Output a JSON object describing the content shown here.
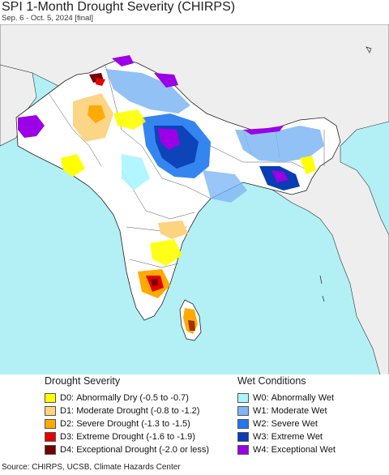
{
  "title": "SPI 1-Month Drought Severity (CHIRPS)",
  "subtitle": "Sep. 6 - Oct. 5, 2024 [final]",
  "legend": {
    "drought": {
      "heading": "Drought Severity",
      "items": [
        {
          "code": "D0:",
          "label": "Abnormally Dry (-0.5 to -0.7)",
          "color": "#ffff00"
        },
        {
          "code": "D1:",
          "label": "Moderate Drought (-0.8 to -1.2)",
          "color": "#fcd37f"
        },
        {
          "code": "D2:",
          "label": "Severe Drought (-1.3 to -1.5)",
          "color": "#ffaa00"
        },
        {
          "code": "D3:",
          "label": "Extreme Drought (-1.6 to -1.9)",
          "color": "#e60000"
        },
        {
          "code": "D4:",
          "label": "Exceptional Drought (-2.0 or less)",
          "color": "#730000"
        }
      ]
    },
    "wet": {
      "heading": "Wet Conditions",
      "items": [
        {
          "code": "W0:",
          "label": "Abnormally Wet",
          "color": "#aaf5ff"
        },
        {
          "code": "W1:",
          "label": "Moderate Wet",
          "color": "#7fb6f5"
        },
        {
          "code": "W2:",
          "label": "Severe Wet",
          "color": "#1f78f0"
        },
        {
          "code": "W3:",
          "label": "Extreme Wet",
          "color": "#0a3cb4"
        },
        {
          "code": "W4:",
          "label": "Exceptional Wet",
          "color": "#9b00e6"
        }
      ]
    }
  },
  "source": "Source: CHIRPS, UCSB, Climate Hazards Center",
  "map_colors": {
    "ocean": "#b3f0f5",
    "land": "#ffffff",
    "outside_land": "#eeeeee",
    "border": "#222222"
  }
}
